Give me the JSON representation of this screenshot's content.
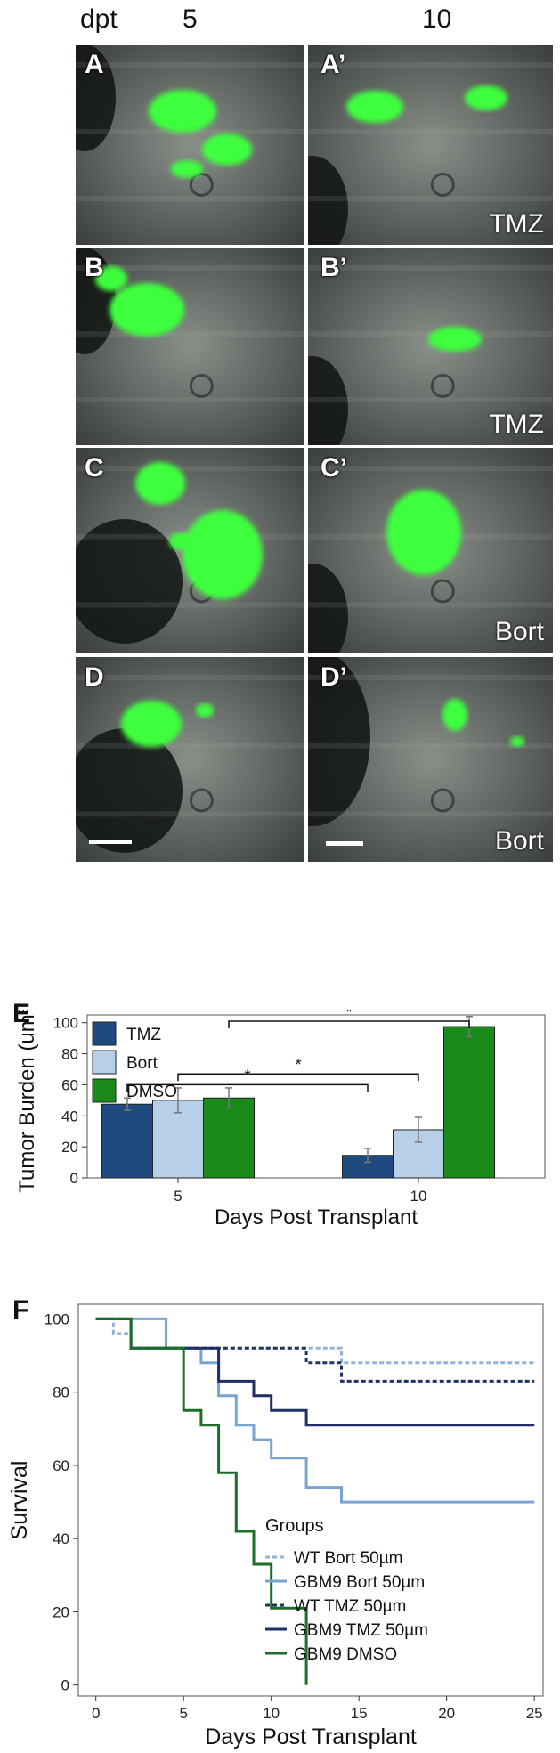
{
  "header": {
    "dpt": "dpt",
    "col1": "5",
    "col2": "10"
  },
  "panels": [
    {
      "left": "A",
      "right": "A’",
      "right_tag": "TMZ"
    },
    {
      "left": "B",
      "right": "B’",
      "right_tag": "TMZ"
    },
    {
      "left": "C",
      "right": "C’",
      "right_tag": "Bort"
    },
    {
      "left": "D",
      "right": "D’",
      "right_tag": "Bort"
    }
  ],
  "chart_data": [
    {
      "panel": "E",
      "type": "bar",
      "categories": [
        "5",
        "10"
      ],
      "series": [
        {
          "name": "TMZ",
          "values": [
            47.5,
            14.5
          ],
          "errors": [
            4,
            4.5
          ]
        },
        {
          "name": "Bort",
          "values": [
            50,
            31
          ],
          "errors": [
            8,
            8
          ]
        },
        {
          "name": "DMSO",
          "values": [
            51.5,
            97.5
          ],
          "errors": [
            6.5,
            6.5
          ]
        }
      ],
      "colors": [
        "#1f4a80",
        "#b8cfe8",
        "#1a8a1a"
      ],
      "xlabel": "Days Post Transplant",
      "ylabel": "Tumor Burden (um³)",
      "ylim": [
        0,
        105
      ],
      "yticks": [
        "0",
        "20",
        "40",
        "60",
        "80",
        "100"
      ],
      "significance": [
        {
          "label": "*",
          "from": [
            "5",
            "TMZ"
          ],
          "to": [
            "10",
            "TMZ"
          ]
        },
        {
          "label": "*",
          "from": [
            "5",
            "Bort"
          ],
          "to": [
            "10",
            "Bort"
          ]
        },
        {
          "label": "*",
          "from": [
            "5",
            "DMSO"
          ],
          "to": [
            "10",
            "DMSO"
          ]
        }
      ],
      "legend_position": "top-left"
    },
    {
      "panel": "F",
      "type": "line",
      "step": true,
      "xlabel": "Days Post Transplant",
      "ylabel": "Survival",
      "xlim": [
        -1,
        25.5
      ],
      "ylim": [
        -3,
        104
      ],
      "xticks": [
        "0",
        "5",
        "10",
        "15",
        "20",
        "25"
      ],
      "yticks": [
        "0",
        "20",
        "40",
        "60",
        "80",
        "100"
      ],
      "legend_title": "Groups",
      "legend_position": "bottom-right",
      "series": [
        {
          "name": "WT Bort 50µm",
          "color": "#8fb3dc",
          "dashed": true,
          "points": [
            [
              0,
              100
            ],
            [
              1,
              100
            ],
            [
              1,
              96
            ],
            [
              2,
              96
            ],
            [
              2,
              92
            ],
            [
              14,
              92
            ],
            [
              14,
              88
            ],
            [
              25,
              88
            ]
          ]
        },
        {
          "name": "GBM9 Bort 50µm",
          "color": "#7aa3d2",
          "dashed": false,
          "points": [
            [
              0,
              100
            ],
            [
              4,
              100
            ],
            [
              4,
              92
            ],
            [
              6,
              92
            ],
            [
              6,
              88
            ],
            [
              7,
              88
            ],
            [
              7,
              79
            ],
            [
              8,
              79
            ],
            [
              8,
              71
            ],
            [
              9,
              71
            ],
            [
              9,
              67
            ],
            [
              10,
              67
            ],
            [
              10,
              62
            ],
            [
              12,
              62
            ],
            [
              12,
              54
            ],
            [
              14,
              54
            ],
            [
              14,
              50
            ],
            [
              25,
              50
            ]
          ]
        },
        {
          "name": "WT TMZ 50µm",
          "color": "#1f3560",
          "dashed": true,
          "points": [
            [
              0,
              100
            ],
            [
              2,
              100
            ],
            [
              2,
              92
            ],
            [
              12,
              92
            ],
            [
              12,
              88
            ],
            [
              14,
              88
            ],
            [
              14,
              83
            ],
            [
              25,
              83
            ]
          ]
        },
        {
          "name": "GBM9 TMZ 50µm",
          "color": "#1f2f66",
          "dashed": false,
          "points": [
            [
              0,
              100
            ],
            [
              2,
              100
            ],
            [
              2,
              92
            ],
            [
              7,
              92
            ],
            [
              7,
              83
            ],
            [
              9,
              83
            ],
            [
              9,
              79
            ],
            [
              10,
              79
            ],
            [
              10,
              75
            ],
            [
              12,
              75
            ],
            [
              12,
              71
            ],
            [
              25,
              71
            ]
          ]
        },
        {
          "name": "GBM9 DMSO",
          "color": "#1d6e2a",
          "dashed": false,
          "points": [
            [
              0,
              100
            ],
            [
              2,
              100
            ],
            [
              2,
              92
            ],
            [
              5,
              92
            ],
            [
              5,
              75
            ],
            [
              6,
              75
            ],
            [
              6,
              71
            ],
            [
              7,
              71
            ],
            [
              7,
              58
            ],
            [
              8,
              58
            ],
            [
              8,
              42
            ],
            [
              9,
              42
            ],
            [
              9,
              33
            ],
            [
              10,
              33
            ],
            [
              10,
              21
            ],
            [
              12,
              21
            ],
            [
              12,
              0
            ]
          ]
        }
      ]
    }
  ]
}
